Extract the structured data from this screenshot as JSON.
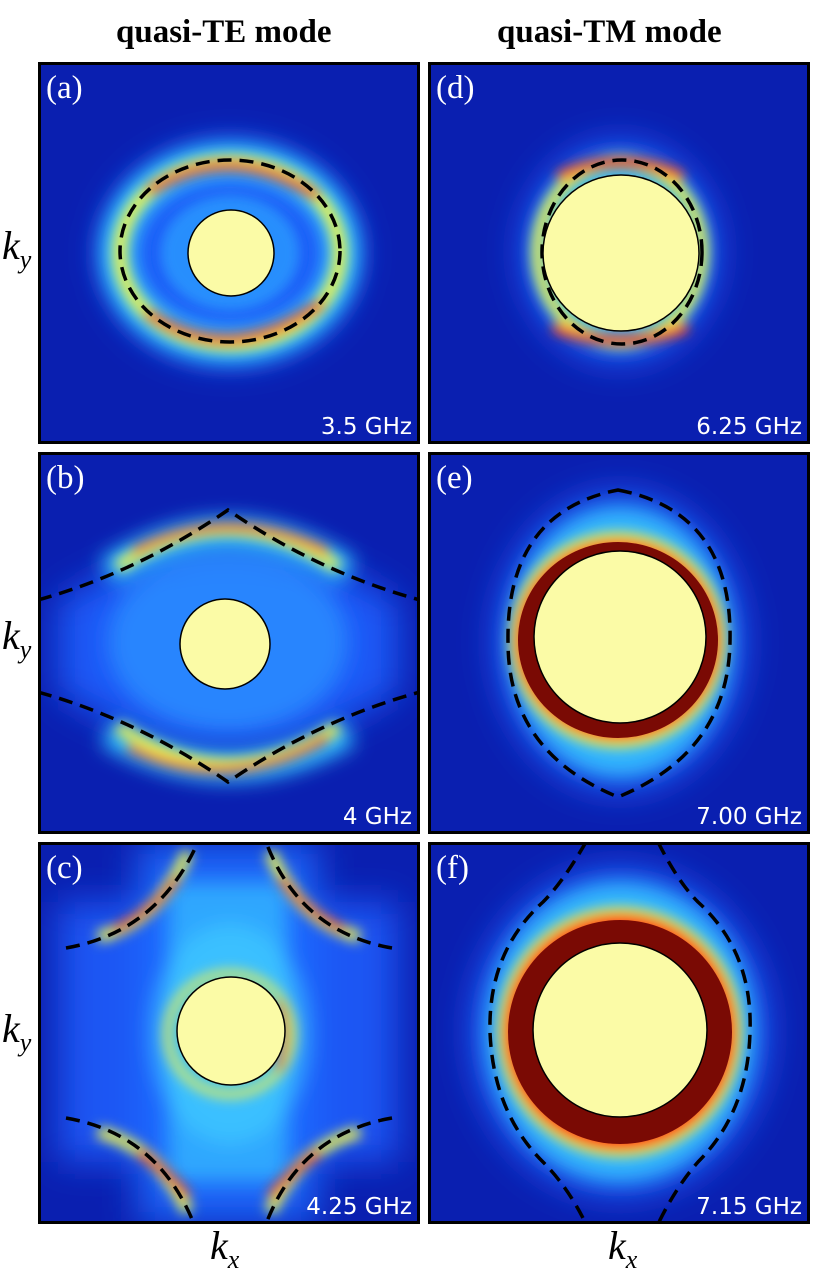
{
  "columns": {
    "left_title": "quasi-TE mode",
    "right_title": "quasi-TM mode"
  },
  "axes": {
    "x_label_base": "k",
    "x_label_sub": "x",
    "y_label_base": "k",
    "y_label_sub": "y"
  },
  "panels": [
    {
      "label": "(a)",
      "frequency": "3.5 GHz"
    },
    {
      "label": "(b)",
      "frequency": "4 GHz"
    },
    {
      "label": "(c)",
      "frequency": "4.25 GHz"
    },
    {
      "label": "(d)",
      "frequency": "6.25 GHz"
    },
    {
      "label": "(e)",
      "frequency": "7.00 GHz"
    },
    {
      "label": "(f)",
      "frequency": "7.15 GHz"
    }
  ],
  "colors": {
    "background": "#0a1fb0",
    "low": "#1f6cff",
    "mid": "#35c8ff",
    "yellow": "#e8f052",
    "red": "#ff2a0a",
    "darkred": "#7a0a04",
    "light_cone": "#fbfba6"
  }
}
